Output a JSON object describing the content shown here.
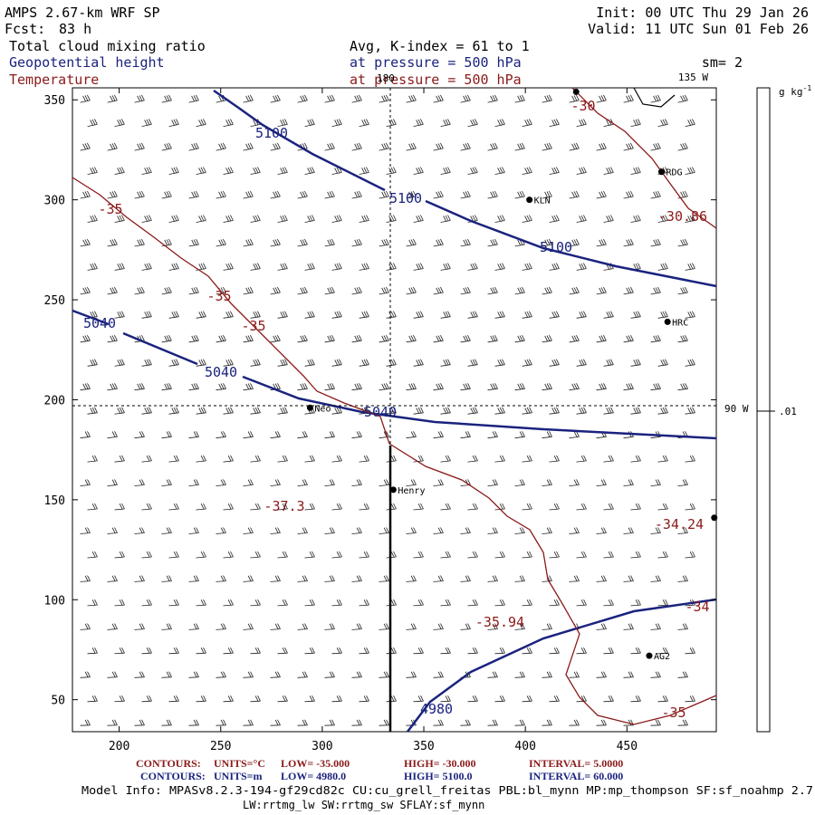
{
  "header": {
    "model": "AMPS 2.67-km WRF SP",
    "forecast_label": "Fcst:",
    "forecast_value": "83 h",
    "init": "Init: 00 UTC Thu 29 Jan 26",
    "valid": "Valid: 11 UTC Sun 01 Feb 26",
    "field1": "Total cloud mixing ratio",
    "field2": "Geopotential height",
    "field3": "Temperature",
    "avg": "Avg, K-index =  61 to   1",
    "pressure1": "at pressure =  500 hPa",
    "pressure2": "at pressure =  500 hPa",
    "smoothing": "sm= 2"
  },
  "map": {
    "lon_label_top": "180",
    "lon_label_135": "135 W",
    "lon_label_90": "90 W",
    "xlim": [
      177,
      494
    ],
    "ylim": [
      34,
      356
    ],
    "x_ticks": [
      "200",
      "250",
      "300",
      "350",
      "400",
      "450"
    ],
    "y_ticks": [
      "50",
      "100",
      "150",
      "200",
      "250",
      "300",
      "350"
    ],
    "stations": [
      {
        "name": "RDG",
        "x": 467,
        "y": 314
      },
      {
        "name": "KLN",
        "x": 402,
        "y": 300
      },
      {
        "name": "HRC",
        "x": 470,
        "y": 239
      },
      {
        "name": "Neo",
        "x": 294,
        "y": 196
      },
      {
        "name": "Henry",
        "x": 335,
        "y": 155
      },
      {
        "name": "AG2",
        "x": 461,
        "y": 72
      },
      {
        "name": "",
        "x": 493,
        "y": 141
      },
      {
        "name": "",
        "x": 425,
        "y": 354
      }
    ],
    "height_labels": [
      "5100",
      "5100",
      "5100",
      "5040",
      "5040",
      "5040",
      "4980"
    ],
    "temp_labels": [
      "-30",
      "-35",
      "-35",
      "-35",
      "-30.86",
      "-37.3",
      "-34.24",
      "-35.94",
      "-34",
      "-35"
    ],
    "colors": {
      "height": "#1a237e",
      "temperature": "#8b1a1a",
      "wind": "#222222"
    }
  },
  "colorbar": {
    "unit": "g kg",
    "unit_exp": "-1",
    "value": ".01"
  },
  "footer": {
    "line1_label": "CONTOURS:",
    "line1_units": "UNITS=°C",
    "line1_low": "LOW= -35.000",
    "line1_high": "HIGH= -30.000",
    "line1_interval": "INTERVAL=  5.0000",
    "line2_label": "CONTOURS:",
    "line2_units": "UNITS=m",
    "line2_low": "LOW=  4980.0",
    "line2_high": "HIGH= 5100.0",
    "line2_interval": "INTERVAL=  60.000",
    "model_info": "Model Info: MPASv8.2.3-194-gf29cd82c CU:cu_grell_freitas PBL:bl_mynn MP:mp_thompson SF:sf_noahmp 2.7",
    "model_info2": "LW:rrtmg_lw SW:rrtmg_sw SFLAY:sf_mynn"
  }
}
